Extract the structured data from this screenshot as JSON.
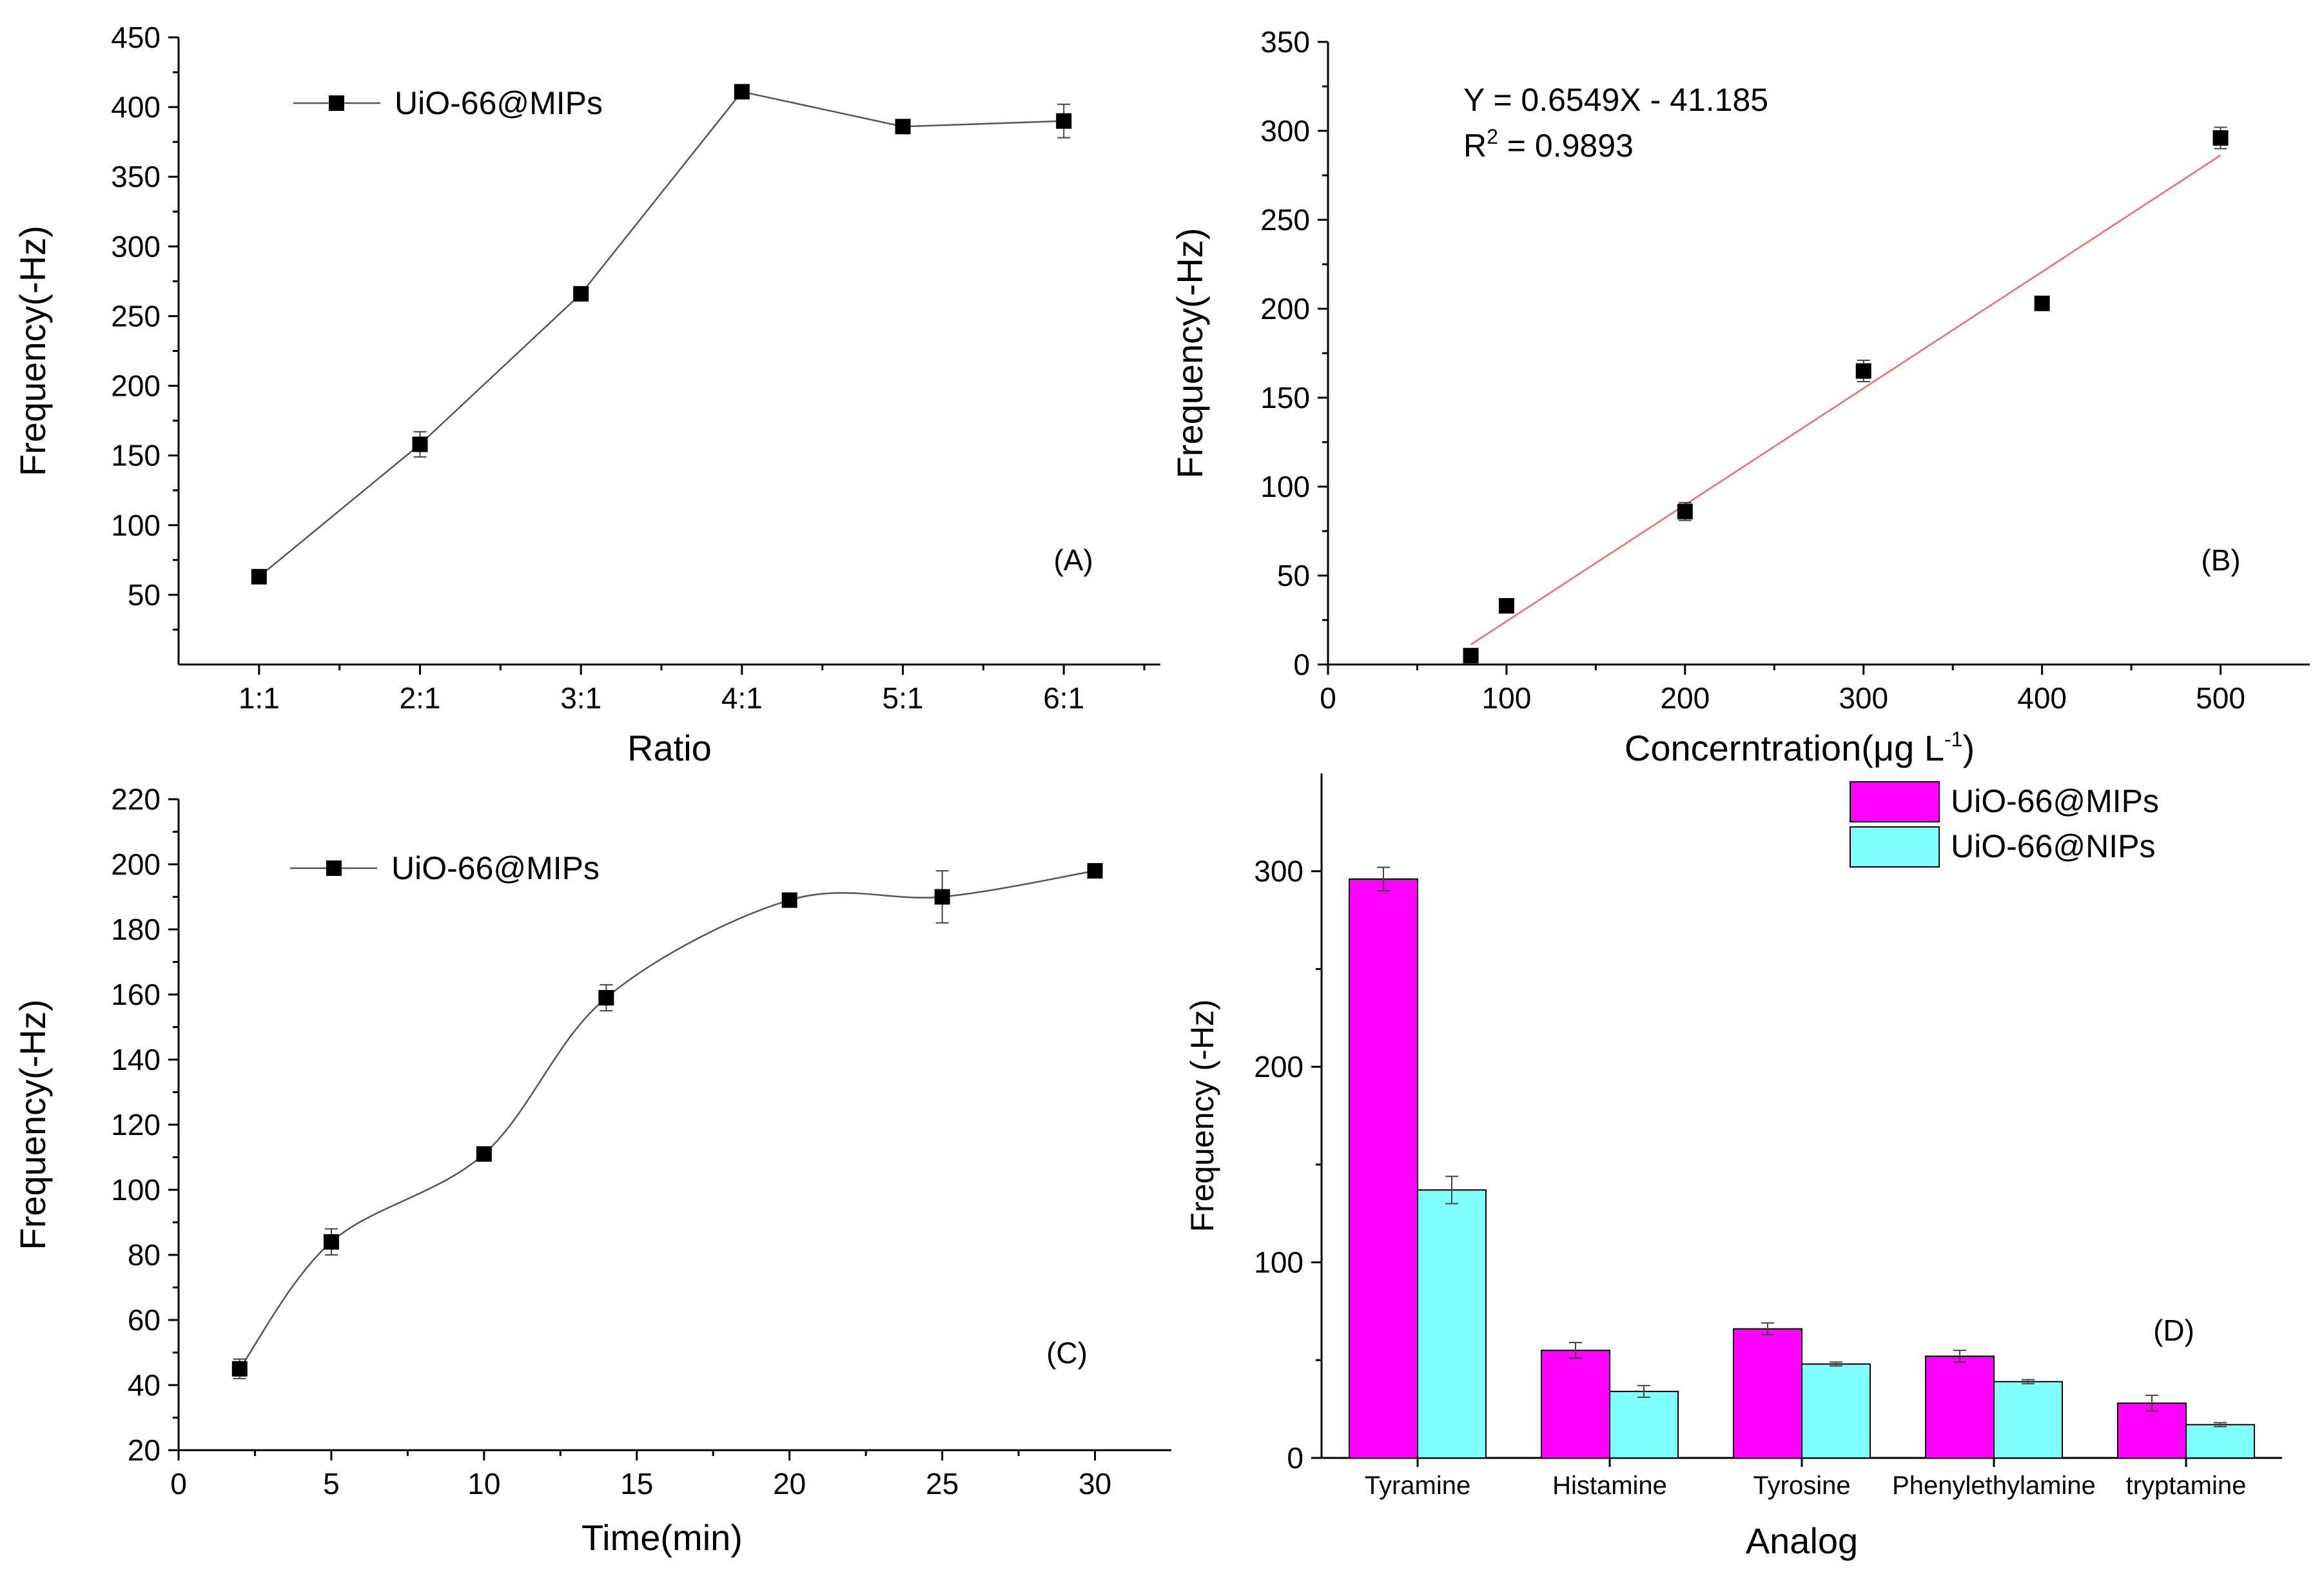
{
  "chart_data": [
    {
      "panel": "A",
      "type": "line",
      "panel_label": "(A)",
      "xlabel": "Ratio",
      "ylabel": "Frequency(-Hz)",
      "categories": [
        "1:1",
        "2:1",
        "3:1",
        "4:1",
        "5:1",
        "6:1"
      ],
      "ylim": [
        0,
        450
      ],
      "yticks": [
        "50",
        "100",
        "150",
        "200",
        "250",
        "300",
        "350",
        "400",
        "450"
      ],
      "series": [
        {
          "name": "UiO-66@MIPs",
          "values": [
            63,
            158,
            266,
            411,
            386,
            390
          ],
          "errors": [
            2,
            9,
            5,
            2,
            2,
            12
          ]
        }
      ]
    },
    {
      "panel": "B",
      "type": "scatter",
      "panel_label": "(B)",
      "xlabel_main": "Concerntration(μg L",
      "xlabel_sup": "-1",
      "xlabel_end": ")",
      "ylabel": "Frequency(-Hz)",
      "xlim": [
        0,
        550
      ],
      "ylim": [
        0,
        350
      ],
      "xticks": [
        "0",
        "100",
        "200",
        "300",
        "400",
        "500"
      ],
      "yticks": [
        "0",
        "50",
        "100",
        "150",
        "200",
        "250",
        "300",
        "350"
      ],
      "equation": "Y = 0.6549X - 41.185",
      "r2_label": "R",
      "r2_sup": "2",
      "r2_value": " = 0.9893",
      "fit": {
        "slope": 0.6549,
        "intercept": -41.185,
        "x_range": [
          80,
          500
        ]
      },
      "x": [
        80,
        100,
        200,
        300,
        400,
        500
      ],
      "y": [
        5,
        33,
        86,
        165,
        203,
        296
      ],
      "errors": [
        2,
        3,
        5,
        6,
        2,
        6
      ]
    },
    {
      "panel": "C",
      "type": "line",
      "panel_label": "(C)",
      "xlabel": "Time(min)",
      "ylabel": "Frequency(-Hz)",
      "xlim": [
        0,
        32.5
      ],
      "ylim": [
        20,
        220
      ],
      "xticks": [
        "0",
        "5",
        "10",
        "15",
        "20",
        "25",
        "30"
      ],
      "yticks": [
        "20",
        "40",
        "60",
        "80",
        "100",
        "120",
        "140",
        "160",
        "180",
        "200",
        "220"
      ],
      "series": [
        {
          "name": "UiO-66@MIPs",
          "x": [
            2,
            5,
            10,
            14,
            20,
            25,
            30
          ],
          "values": [
            45,
            84,
            111,
            159,
            189,
            190,
            198
          ],
          "errors": [
            3,
            4,
            2,
            4,
            1,
            8,
            1
          ]
        }
      ]
    },
    {
      "panel": "D",
      "type": "bar",
      "panel_label": "(D)",
      "xlabel": "Analog",
      "ylabel": "Frequency (-Hz)",
      "ylim": [
        0,
        350
      ],
      "yticks": [
        "0",
        "100",
        "200",
        "300"
      ],
      "categories": [
        "Tyramine",
        "Histamine",
        "Tyrosine",
        "Phenylethylamine",
        "tryptamine"
      ],
      "series": [
        {
          "name": "UiO-66@MIPs",
          "color": "#ff00ff",
          "values": [
            296,
            55,
            66,
            52,
            28
          ],
          "errors": [
            6,
            4,
            3,
            3,
            4
          ]
        },
        {
          "name": "UiO-66@NIPs",
          "color": "#80ffff",
          "values": [
            137,
            34,
            48,
            39,
            17
          ],
          "errors": [
            7,
            3,
            1,
            1,
            1
          ]
        }
      ]
    }
  ]
}
